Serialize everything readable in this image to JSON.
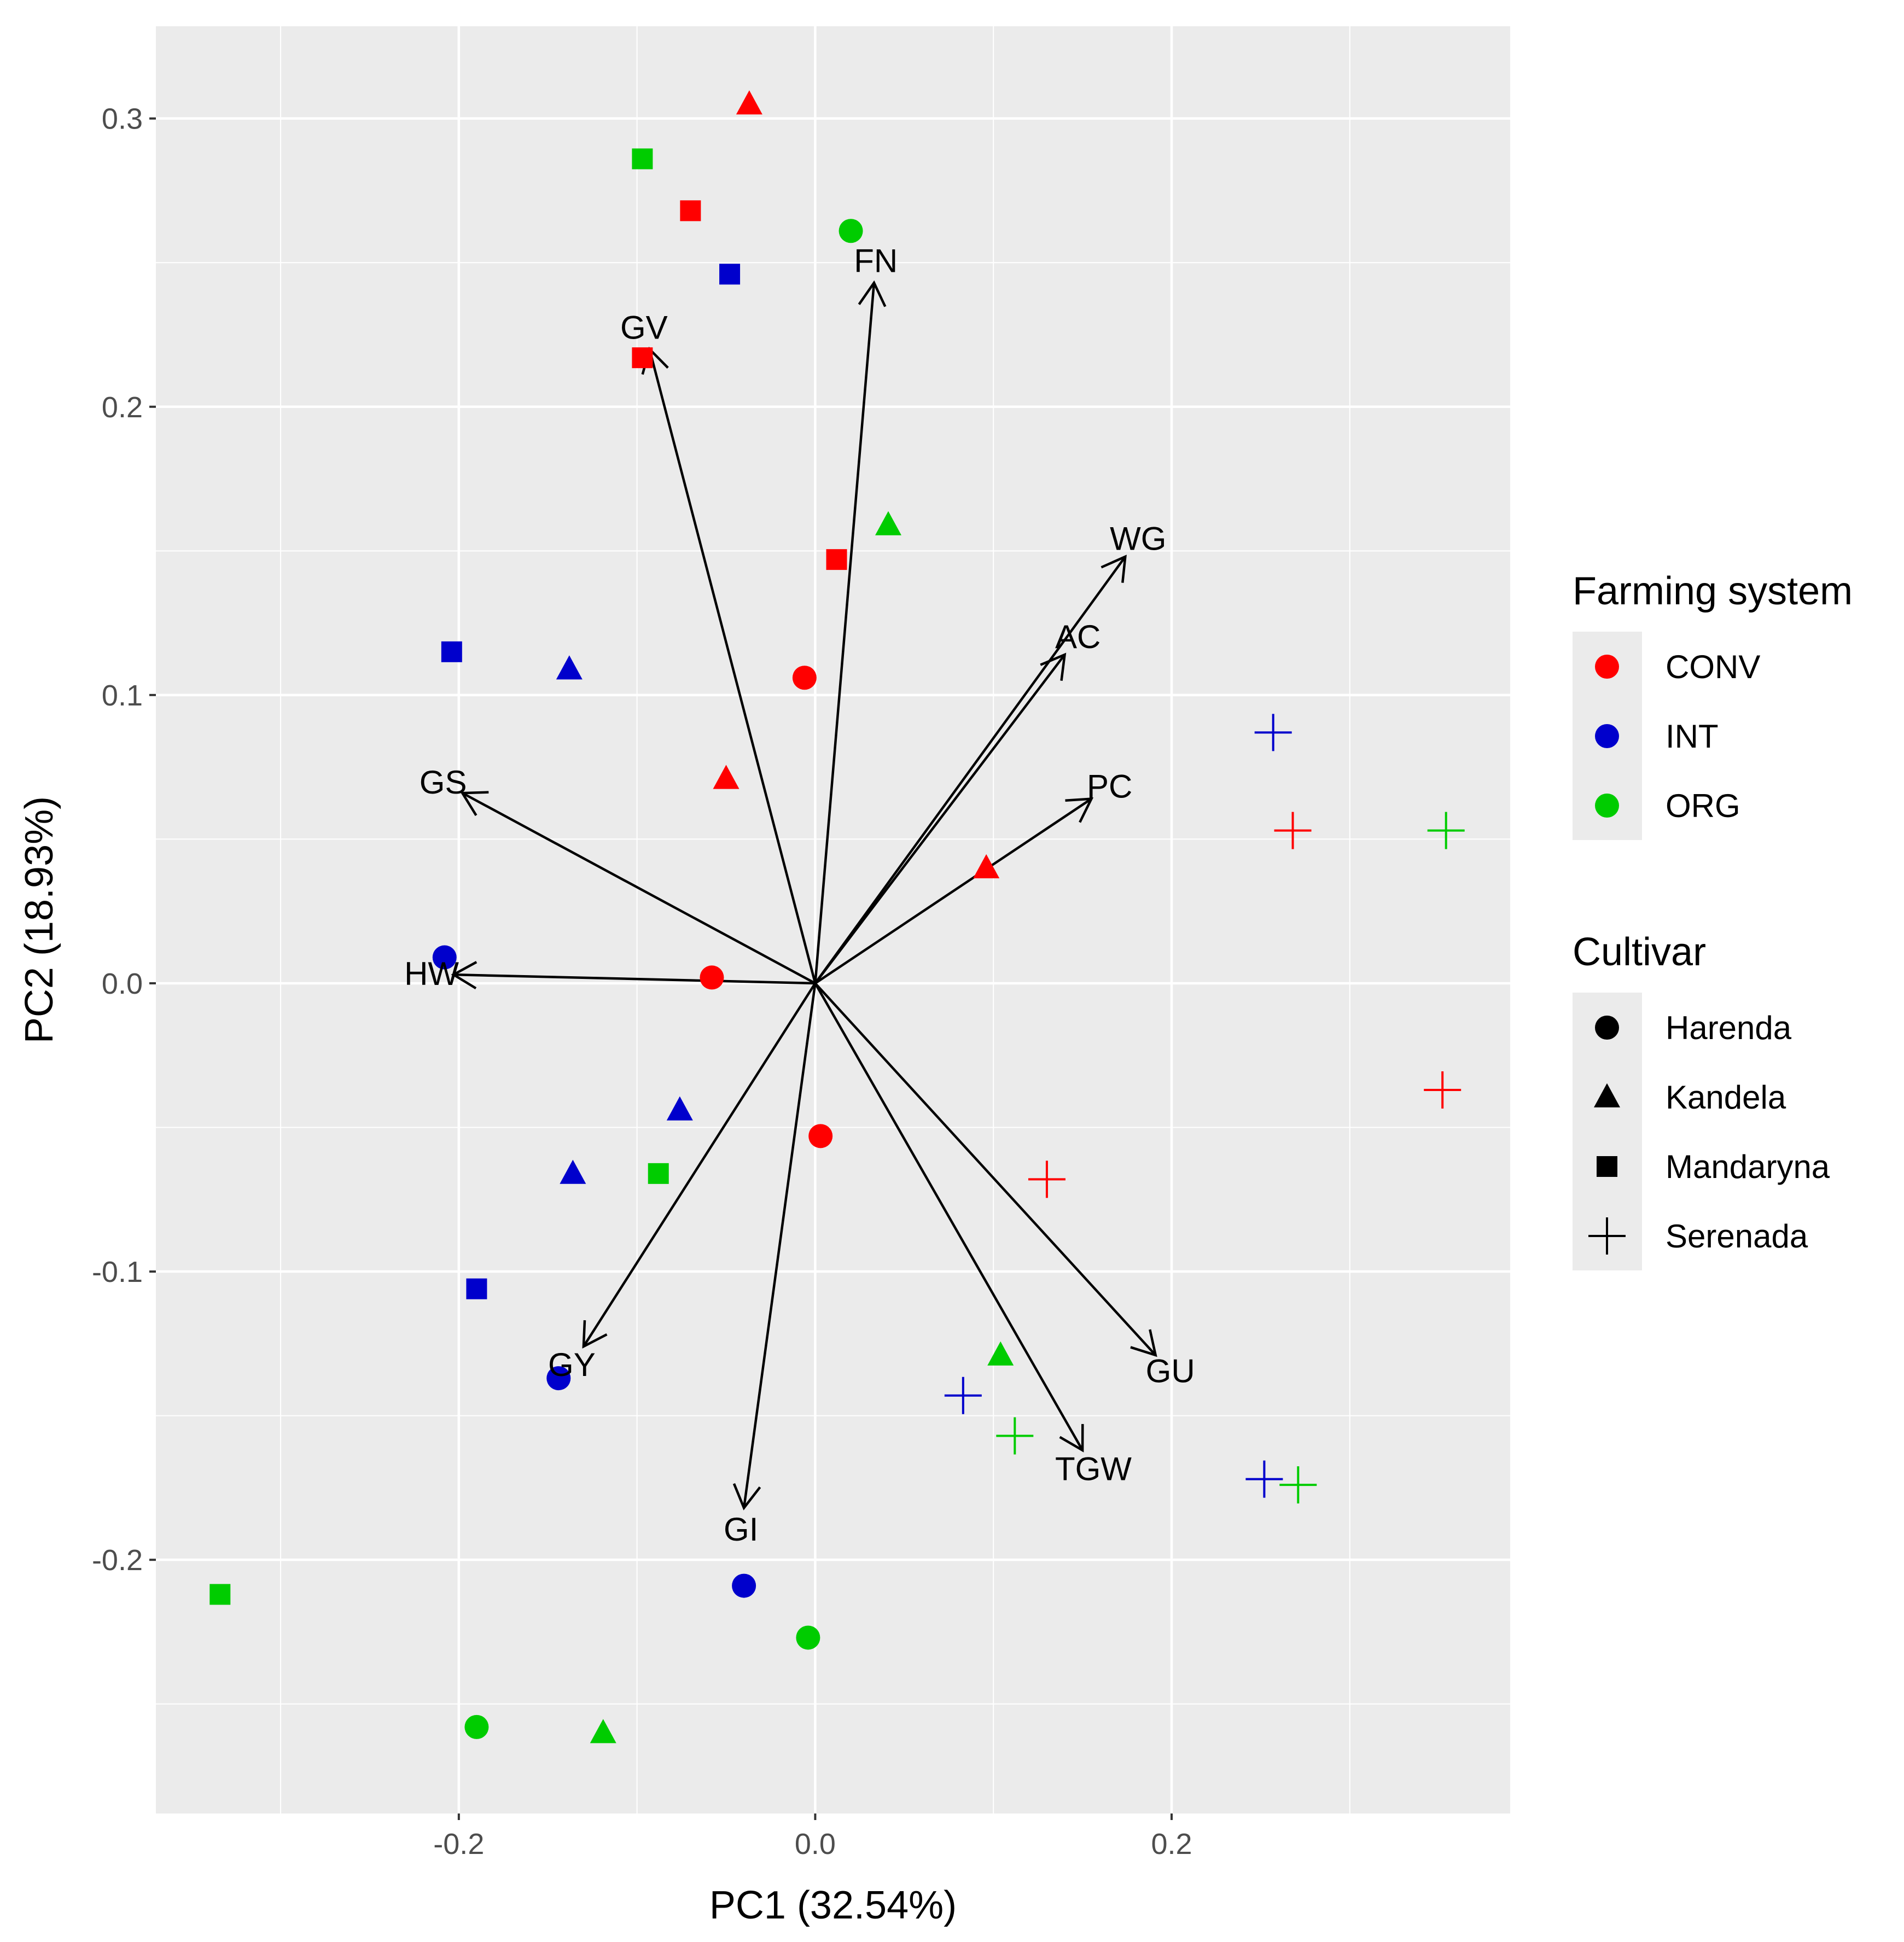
{
  "chart_data": {
    "type": "scatter",
    "subtype": "pca-biplot",
    "title": "",
    "xlabel": "PC1 (32.54%)",
    "ylabel": "PC2 (18.93%)",
    "xlim": [
      -0.37,
      0.39
    ],
    "ylim": [
      -0.288,
      0.332
    ],
    "x_ticks": [
      {
        "value": -0.2,
        "label": "-0.2"
      },
      {
        "value": 0.0,
        "label": "0.0"
      },
      {
        "value": 0.2,
        "label": "0.2"
      }
    ],
    "y_ticks": [
      {
        "value": -0.2,
        "label": "-0.2"
      },
      {
        "value": -0.1,
        "label": "-0.1"
      },
      {
        "value": 0.0,
        "label": "0.0"
      },
      {
        "value": 0.1,
        "label": "0.1"
      },
      {
        "value": 0.2,
        "label": "0.2"
      },
      {
        "value": 0.3,
        "label": "0.3"
      }
    ],
    "grid": true,
    "background": "#ebebeb",
    "colors": {
      "CONV": "#ff0000",
      "INT": "#0000cc",
      "ORG": "#00cc00"
    },
    "legends": [
      {
        "title": "Farming system",
        "type": "color",
        "items": [
          "CONV",
          "INT",
          "ORG"
        ]
      },
      {
        "title": "Cultivar",
        "type": "shape",
        "items": [
          {
            "label": "Harenda",
            "shape": "circle"
          },
          {
            "label": "Kandela",
            "shape": "triangle"
          },
          {
            "label": "Mandaryna",
            "shape": "square"
          },
          {
            "label": "Serenada",
            "shape": "plus"
          }
        ]
      }
    ],
    "legend_position": "right",
    "points": [
      {
        "x": -0.037,
        "y": 0.305,
        "system": "CONV",
        "cultivar": "Kandela"
      },
      {
        "x": -0.097,
        "y": 0.286,
        "system": "ORG",
        "cultivar": "Mandaryna"
      },
      {
        "x": -0.07,
        "y": 0.268,
        "system": "CONV",
        "cultivar": "Mandaryna"
      },
      {
        "x": 0.02,
        "y": 0.261,
        "system": "ORG",
        "cultivar": "Harenda"
      },
      {
        "x": -0.048,
        "y": 0.246,
        "system": "INT",
        "cultivar": "Mandaryna"
      },
      {
        "x": -0.097,
        "y": 0.217,
        "system": "CONV",
        "cultivar": "Mandaryna"
      },
      {
        "x": 0.041,
        "y": 0.159,
        "system": "ORG",
        "cultivar": "Kandela"
      },
      {
        "x": 0.012,
        "y": 0.147,
        "system": "CONV",
        "cultivar": "Mandaryna"
      },
      {
        "x": -0.204,
        "y": 0.115,
        "system": "INT",
        "cultivar": "Mandaryna"
      },
      {
        "x": -0.138,
        "y": 0.109,
        "system": "INT",
        "cultivar": "Kandela"
      },
      {
        "x": -0.006,
        "y": 0.106,
        "system": "CONV",
        "cultivar": "Harenda"
      },
      {
        "x": -0.05,
        "y": 0.071,
        "system": "CONV",
        "cultivar": "Kandela"
      },
      {
        "x": 0.096,
        "y": 0.04,
        "system": "CONV",
        "cultivar": "Kandela"
      },
      {
        "x": -0.208,
        "y": 0.009,
        "system": "INT",
        "cultivar": "Harenda"
      },
      {
        "x": -0.058,
        "y": 0.002,
        "system": "CONV",
        "cultivar": "Harenda"
      },
      {
        "x": -0.076,
        "y": -0.044,
        "system": "INT",
        "cultivar": "Kandela"
      },
      {
        "x": 0.003,
        "y": -0.053,
        "system": "CONV",
        "cultivar": "Harenda"
      },
      {
        "x": -0.136,
        "y": -0.066,
        "system": "INT",
        "cultivar": "Kandela"
      },
      {
        "x": -0.088,
        "y": -0.066,
        "system": "ORG",
        "cultivar": "Mandaryna"
      },
      {
        "x": -0.19,
        "y": -0.106,
        "system": "INT",
        "cultivar": "Mandaryna"
      },
      {
        "x": -0.144,
        "y": -0.137,
        "system": "INT",
        "cultivar": "Harenda"
      },
      {
        "x": 0.104,
        "y": -0.129,
        "system": "ORG",
        "cultivar": "Kandela"
      },
      {
        "x": -0.04,
        "y": -0.209,
        "system": "INT",
        "cultivar": "Harenda"
      },
      {
        "x": -0.334,
        "y": -0.212,
        "system": "ORG",
        "cultivar": "Mandaryna"
      },
      {
        "x": -0.004,
        "y": -0.227,
        "system": "ORG",
        "cultivar": "Harenda"
      },
      {
        "x": -0.19,
        "y": -0.258,
        "system": "ORG",
        "cultivar": "Harenda"
      },
      {
        "x": -0.119,
        "y": -0.26,
        "system": "ORG",
        "cultivar": "Kandela"
      },
      {
        "x": 0.257,
        "y": 0.087,
        "system": "INT",
        "cultivar": "Serenada"
      },
      {
        "x": 0.268,
        "y": 0.053,
        "system": "CONV",
        "cultivar": "Serenada"
      },
      {
        "x": 0.354,
        "y": 0.053,
        "system": "ORG",
        "cultivar": "Serenada"
      },
      {
        "x": 0.352,
        "y": -0.037,
        "system": "CONV",
        "cultivar": "Serenada"
      },
      {
        "x": 0.13,
        "y": -0.068,
        "system": "CONV",
        "cultivar": "Serenada"
      },
      {
        "x": 0.083,
        "y": -0.143,
        "system": "INT",
        "cultivar": "Serenada"
      },
      {
        "x": 0.112,
        "y": -0.157,
        "system": "ORG",
        "cultivar": "Serenada"
      },
      {
        "x": 0.252,
        "y": -0.172,
        "system": "INT",
        "cultivar": "Serenada"
      },
      {
        "x": 0.271,
        "y": -0.174,
        "system": "ORG",
        "cultivar": "Serenada"
      }
    ],
    "vectors": [
      {
        "label": "FN",
        "x": 0.033,
        "y": 0.243
      },
      {
        "label": "GV",
        "x": -0.093,
        "y": 0.22
      },
      {
        "label": "WG",
        "x": 0.174,
        "y": 0.148
      },
      {
        "label": "AC",
        "x": 0.14,
        "y": 0.114
      },
      {
        "label": "PC",
        "x": 0.155,
        "y": 0.064
      },
      {
        "label": "GS",
        "x": -0.198,
        "y": 0.066
      },
      {
        "label": "HW",
        "x": -0.203,
        "y": 0.003
      },
      {
        "label": "GY",
        "x": -0.13,
        "y": -0.126
      },
      {
        "label": "GU",
        "x": 0.191,
        "y": -0.129
      },
      {
        "label": "TGW",
        "x": 0.15,
        "y": -0.162
      },
      {
        "label": "GI",
        "x": -0.04,
        "y": -0.182
      }
    ]
  }
}
